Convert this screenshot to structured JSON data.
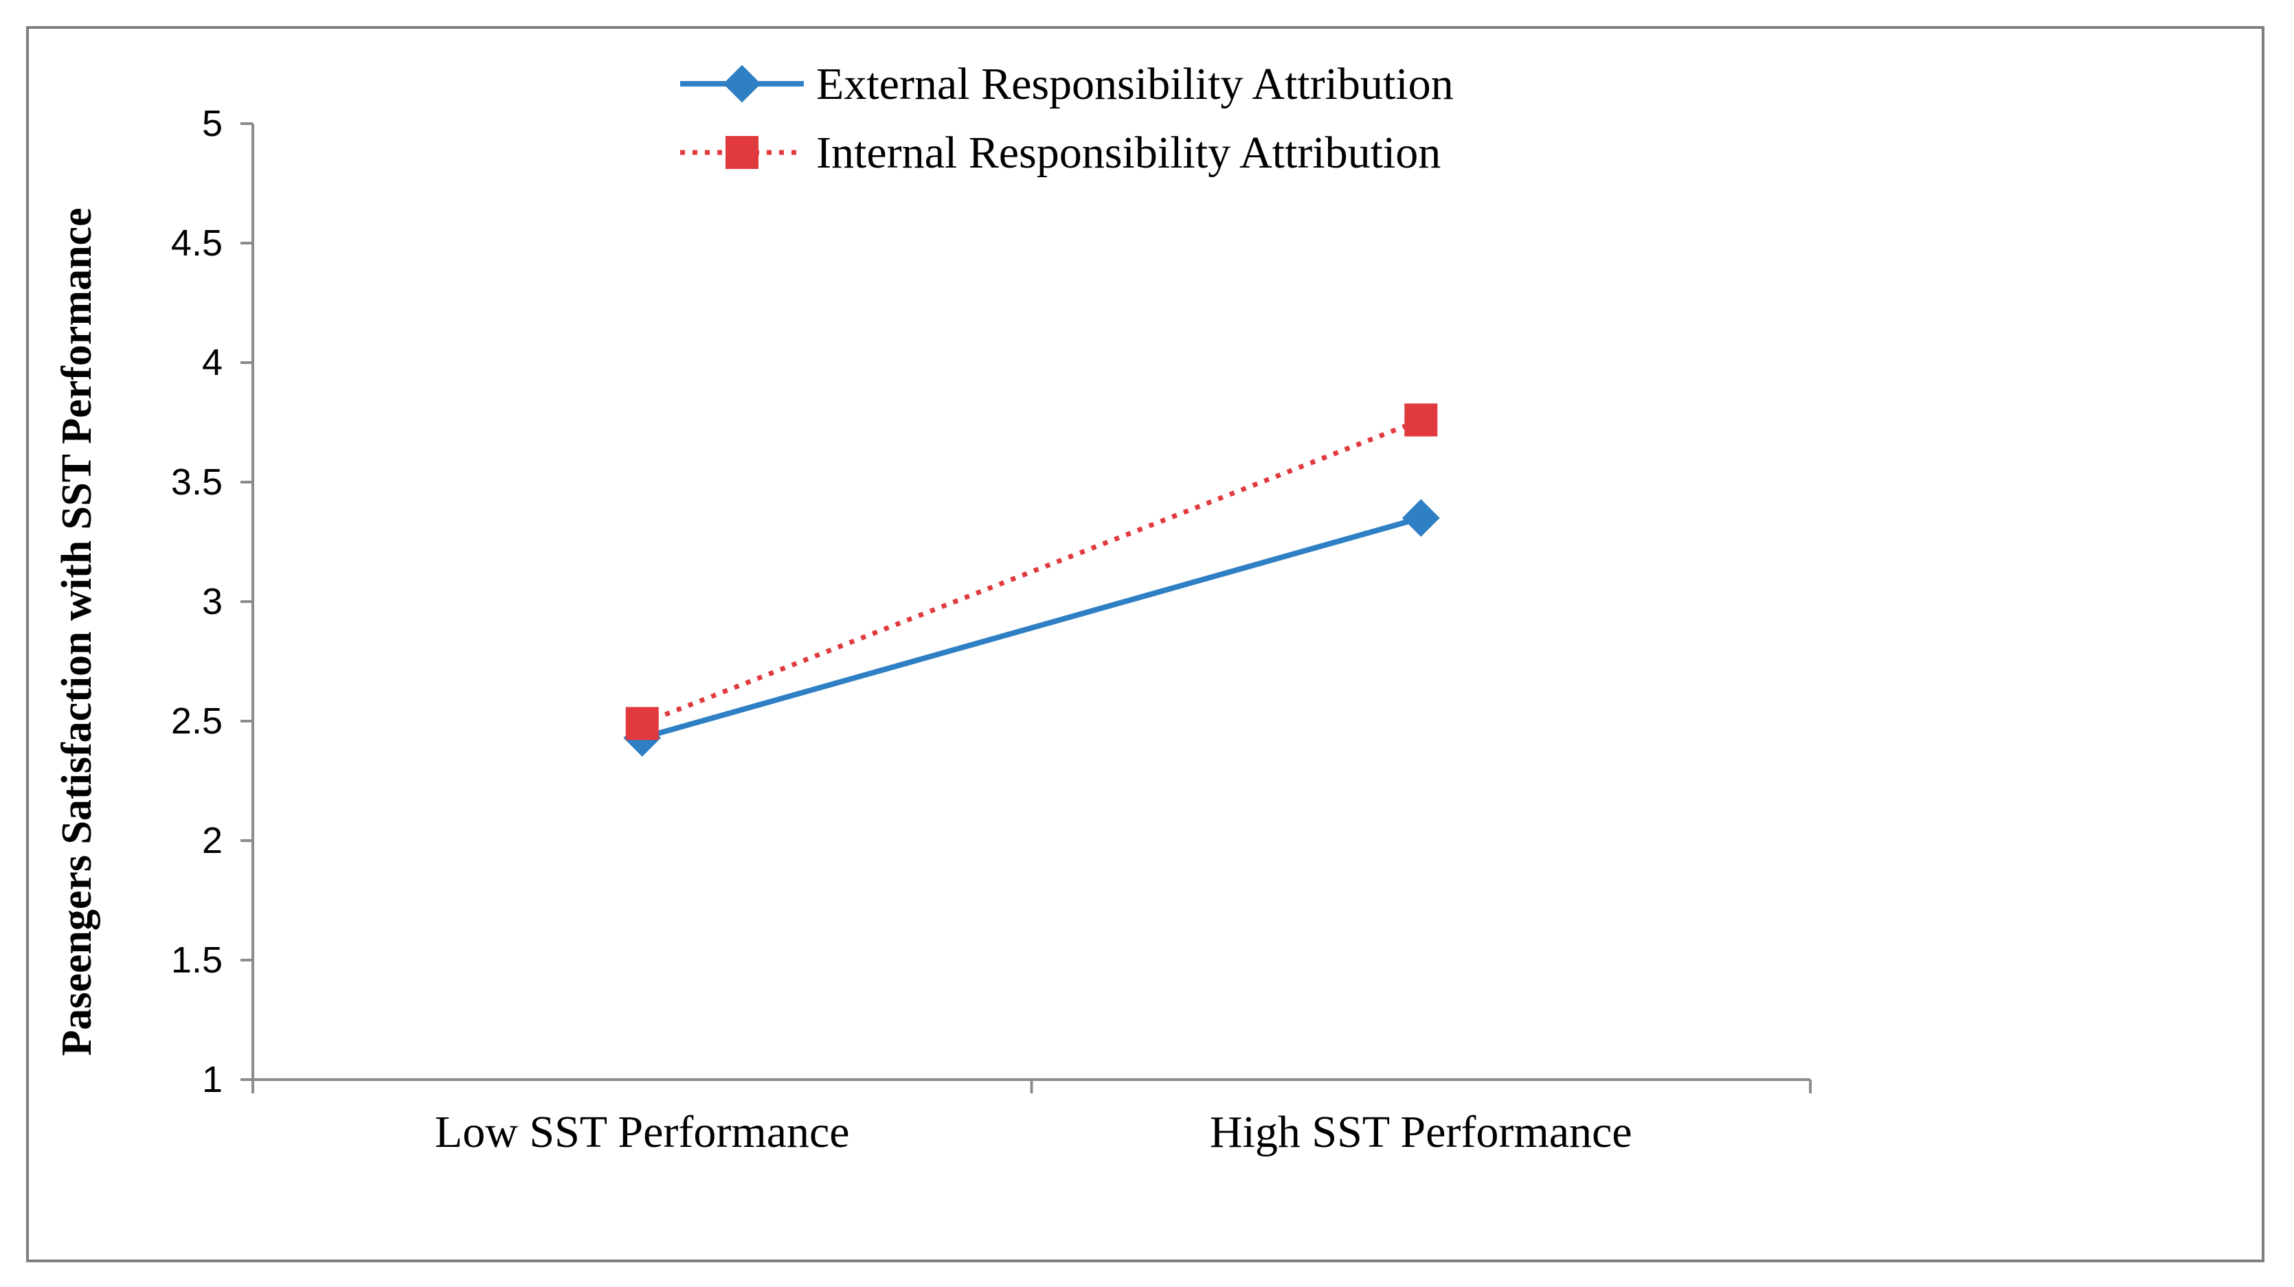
{
  "chart_data": {
    "type": "line",
    "title": "",
    "xlabel": "",
    "ylabel": "Paseengers Satisfaction with SST Performance",
    "categories": [
      "Low SST Performance",
      "High SST Performance"
    ],
    "ylim": [
      1,
      5
    ],
    "yticks": [
      "1",
      "1.5",
      "2",
      "2.5",
      "3",
      "3.5",
      "4",
      "4.5",
      "5"
    ],
    "grid": false,
    "legend_position": "top-center",
    "series": [
      {
        "name": "External Responsibility Attribution",
        "values": [
          2.43,
          3.35
        ],
        "color": "#2e7fc4",
        "line": "solid",
        "marker": "diamond"
      },
      {
        "name": "Internal Responsibility Attribution",
        "values": [
          2.49,
          3.76
        ],
        "color": "#e0393e",
        "line": "dotted",
        "marker": "square"
      }
    ]
  }
}
